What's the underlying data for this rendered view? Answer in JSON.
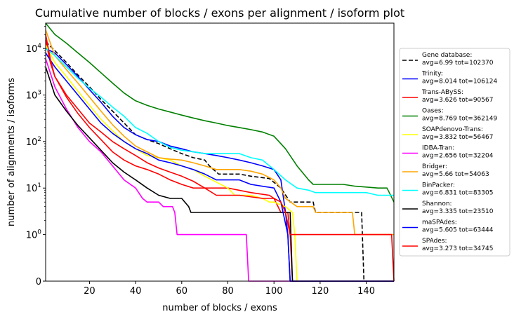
{
  "chart_data": {
    "type": "line",
    "title": "Cumulative number of blocks / exons per alignment / isoform plot",
    "xlabel": "number of blocks / exons",
    "ylabel": "number of alignments / isoforms",
    "xlim": [
      1,
      152
    ],
    "y_scale": "symlog",
    "ylim": [
      0,
      35000
    ],
    "x_ticks": [
      20,
      40,
      60,
      80,
      100,
      120,
      140
    ],
    "y_ticks": [
      {
        "value": 0,
        "label": "0"
      },
      {
        "value": 1,
        "label": "10^0"
      },
      {
        "value": 10,
        "label": "10^1"
      },
      {
        "value": 100,
        "label": "10^2"
      },
      {
        "value": 1000,
        "label": "10^3"
      },
      {
        "value": 10000,
        "label": "10^4"
      }
    ],
    "grid": false,
    "legend_position": "right",
    "series": [
      {
        "name": "Gene database:",
        "stats": "avg=6.99 tot=102370",
        "color": "#000000",
        "dashed": true,
        "points": [
          [
            1,
            14000
          ],
          [
            5,
            9000
          ],
          [
            10,
            5000
          ],
          [
            15,
            2700
          ],
          [
            20,
            1500
          ],
          [
            25,
            800
          ],
          [
            30,
            450
          ],
          [
            35,
            250
          ],
          [
            40,
            140
          ],
          [
            45,
            110
          ],
          [
            50,
            90
          ],
          [
            55,
            70
          ],
          [
            60,
            55
          ],
          [
            65,
            45
          ],
          [
            70,
            40
          ],
          [
            72,
            30
          ],
          [
            76,
            20
          ],
          [
            85,
            20
          ],
          [
            90,
            18
          ],
          [
            98,
            16
          ],
          [
            103,
            10
          ],
          [
            106,
            6
          ],
          [
            107,
            5
          ],
          [
            117,
            5
          ],
          [
            118,
            3
          ],
          [
            136,
            3
          ],
          [
            138,
            3
          ],
          [
            139,
            0
          ],
          [
            152,
            0
          ]
        ]
      },
      {
        "name": "Trinity:",
        "stats": "avg=8.014 tot=106124",
        "color": "#0000ff",
        "points": [
          [
            1,
            10000
          ],
          [
            5,
            8000
          ],
          [
            10,
            4500
          ],
          [
            15,
            2500
          ],
          [
            20,
            1300
          ],
          [
            25,
            700
          ],
          [
            30,
            350
          ],
          [
            35,
            200
          ],
          [
            40,
            140
          ],
          [
            45,
            110
          ],
          [
            50,
            100
          ],
          [
            55,
            80
          ],
          [
            60,
            70
          ],
          [
            65,
            60
          ],
          [
            70,
            55
          ],
          [
            75,
            50
          ],
          [
            80,
            45
          ],
          [
            85,
            40
          ],
          [
            90,
            35
          ],
          [
            95,
            30
          ],
          [
            100,
            25
          ],
          [
            103,
            15
          ],
          [
            105,
            3
          ],
          [
            106,
            1
          ],
          [
            107,
            0
          ],
          [
            152,
            0
          ]
        ]
      },
      {
        "name": "Trans-ABySS:",
        "stats": "avg=3.626 tot=90567",
        "color": "#ff0000",
        "points": [
          [
            1,
            15000
          ],
          [
            3,
            5000
          ],
          [
            5,
            2500
          ],
          [
            10,
            1000
          ],
          [
            15,
            500
          ],
          [
            20,
            250
          ],
          [
            25,
            160
          ],
          [
            30,
            100
          ],
          [
            35,
            70
          ],
          [
            40,
            50
          ],
          [
            45,
            35
          ],
          [
            50,
            27
          ],
          [
            55,
            22
          ],
          [
            60,
            18
          ],
          [
            65,
            14
          ],
          [
            70,
            10
          ],
          [
            80,
            10
          ],
          [
            90,
            8
          ],
          [
            98,
            7
          ],
          [
            100,
            6
          ],
          [
            103,
            3
          ],
          [
            106,
            3
          ],
          [
            107,
            1
          ],
          [
            108,
            0
          ],
          [
            152,
            0
          ]
        ]
      },
      {
        "name": "Oases:",
        "stats": "avg=8.769 tot=362149",
        "color": "#008000",
        "points": [
          [
            1,
            35000
          ],
          [
            5,
            20000
          ],
          [
            10,
            13000
          ],
          [
            15,
            8000
          ],
          [
            20,
            5000
          ],
          [
            25,
            3000
          ],
          [
            30,
            1800
          ],
          [
            35,
            1100
          ],
          [
            40,
            750
          ],
          [
            45,
            600
          ],
          [
            50,
            500
          ],
          [
            55,
            430
          ],
          [
            60,
            370
          ],
          [
            65,
            320
          ],
          [
            70,
            280
          ],
          [
            75,
            250
          ],
          [
            80,
            220
          ],
          [
            85,
            200
          ],
          [
            90,
            180
          ],
          [
            95,
            160
          ],
          [
            100,
            130
          ],
          [
            105,
            70
          ],
          [
            110,
            30
          ],
          [
            115,
            15
          ],
          [
            117,
            12
          ],
          [
            130,
            12
          ],
          [
            135,
            11
          ],
          [
            145,
            10
          ],
          [
            149,
            10
          ],
          [
            150,
            8
          ],
          [
            152,
            5
          ]
        ]
      },
      {
        "name": "SOAPdenovo-Trans:",
        "stats": "avg=3.832 tot=56467",
        "color": "#ffff00",
        "points": [
          [
            1,
            12000
          ],
          [
            5,
            5000
          ],
          [
            10,
            2500
          ],
          [
            15,
            1200
          ],
          [
            20,
            600
          ],
          [
            25,
            300
          ],
          [
            30,
            170
          ],
          [
            35,
            100
          ],
          [
            40,
            70
          ],
          [
            45,
            50
          ],
          [
            50,
            45
          ],
          [
            55,
            40
          ],
          [
            60,
            30
          ],
          [
            65,
            25
          ],
          [
            70,
            18
          ],
          [
            80,
            10
          ],
          [
            83,
            7
          ],
          [
            90,
            7
          ],
          [
            95,
            6
          ],
          [
            98,
            5
          ],
          [
            100,
            5
          ],
          [
            105,
            4
          ],
          [
            108,
            3
          ],
          [
            109,
            1
          ],
          [
            110,
            0
          ],
          [
            152,
            0
          ]
        ]
      },
      {
        "name": "IDBA-Tran:",
        "stats": "avg=2.656 tot=32204",
        "color": "#ff00ff",
        "points": [
          [
            1,
            6000
          ],
          [
            3,
            3000
          ],
          [
            5,
            1500
          ],
          [
            10,
            500
          ],
          [
            15,
            200
          ],
          [
            20,
            100
          ],
          [
            25,
            60
          ],
          [
            30,
            30
          ],
          [
            35,
            15
          ],
          [
            40,
            10
          ],
          [
            43,
            6
          ],
          [
            45,
            5
          ],
          [
            50,
            5
          ],
          [
            52,
            4
          ],
          [
            56,
            4
          ],
          [
            57,
            3
          ],
          [
            58,
            1
          ],
          [
            88,
            1
          ],
          [
            89,
            0
          ],
          [
            152,
            0
          ]
        ]
      },
      {
        "name": "Bridger:",
        "stats": "avg=5.66 tot=54063",
        "color": "#ffa500",
        "points": [
          [
            1,
            25000
          ],
          [
            5,
            7000
          ],
          [
            10,
            3500
          ],
          [
            15,
            1800
          ],
          [
            20,
            900
          ],
          [
            25,
            450
          ],
          [
            30,
            230
          ],
          [
            35,
            130
          ],
          [
            40,
            80
          ],
          [
            45,
            60
          ],
          [
            50,
            45
          ],
          [
            55,
            42
          ],
          [
            60,
            40
          ],
          [
            65,
            35
          ],
          [
            70,
            30
          ],
          [
            75,
            25
          ],
          [
            85,
            25
          ],
          [
            90,
            23
          ],
          [
            95,
            20
          ],
          [
            100,
            15
          ],
          [
            103,
            10
          ],
          [
            105,
            6
          ],
          [
            110,
            4
          ],
          [
            117,
            4
          ],
          [
            118,
            3
          ],
          [
            134,
            3
          ],
          [
            135,
            1
          ],
          [
            152,
            1
          ]
        ]
      },
      {
        "name": "BinPacker:",
        "stats": "avg=6.831 tot=83305",
        "color": "#00ffff",
        "points": [
          [
            1,
            10000
          ],
          [
            5,
            7000
          ],
          [
            10,
            4000
          ],
          [
            15,
            2300
          ],
          [
            20,
            1400
          ],
          [
            25,
            900
          ],
          [
            30,
            550
          ],
          [
            35,
            350
          ],
          [
            40,
            200
          ],
          [
            45,
            150
          ],
          [
            50,
            100
          ],
          [
            55,
            75
          ],
          [
            60,
            65
          ],
          [
            65,
            60
          ],
          [
            70,
            55
          ],
          [
            85,
            55
          ],
          [
            90,
            45
          ],
          [
            95,
            40
          ],
          [
            100,
            25
          ],
          [
            105,
            15
          ],
          [
            110,
            10
          ],
          [
            115,
            9
          ],
          [
            118,
            8
          ],
          [
            140,
            8
          ],
          [
            145,
            7
          ],
          [
            152,
            7
          ]
        ]
      },
      {
        "name": "Shannon:",
        "stats": "avg=3.335 tot=23510",
        "color": "#000000",
        "points": [
          [
            1,
            4000
          ],
          [
            3,
            2000
          ],
          [
            5,
            1000
          ],
          [
            10,
            450
          ],
          [
            15,
            220
          ],
          [
            20,
            120
          ],
          [
            25,
            65
          ],
          [
            30,
            35
          ],
          [
            35,
            22
          ],
          [
            40,
            15
          ],
          [
            45,
            10
          ],
          [
            50,
            7
          ],
          [
            55,
            6
          ],
          [
            60,
            6
          ],
          [
            63,
            4
          ],
          [
            64,
            3
          ],
          [
            70,
            3
          ],
          [
            100,
            3
          ],
          [
            107,
            3
          ],
          [
            108,
            0
          ],
          [
            152,
            0
          ]
        ]
      },
      {
        "name": "maSPAdes:",
        "stats": "avg=5.605 tot=63444",
        "color": "#0000ff",
        "points": [
          [
            1,
            8000
          ],
          [
            5,
            4000
          ],
          [
            10,
            2000
          ],
          [
            15,
            1000
          ],
          [
            20,
            500
          ],
          [
            25,
            250
          ],
          [
            30,
            150
          ],
          [
            35,
            100
          ],
          [
            40,
            70
          ],
          [
            45,
            55
          ],
          [
            50,
            40
          ],
          [
            55,
            35
          ],
          [
            60,
            30
          ],
          [
            65,
            25
          ],
          [
            70,
            20
          ],
          [
            75,
            15
          ],
          [
            85,
            15
          ],
          [
            90,
            12
          ],
          [
            100,
            10
          ],
          [
            103,
            5
          ],
          [
            106,
            1
          ],
          [
            107,
            0
          ],
          [
            152,
            0
          ]
        ]
      },
      {
        "name": "SPAdes:",
        "stats": "avg=3.273 tot=34745",
        "color": "#ff0000",
        "points": [
          [
            1,
            20000
          ],
          [
            3,
            6000
          ],
          [
            5,
            2500
          ],
          [
            10,
            900
          ],
          [
            15,
            400
          ],
          [
            20,
            200
          ],
          [
            25,
            110
          ],
          [
            30,
            60
          ],
          [
            35,
            40
          ],
          [
            40,
            30
          ],
          [
            45,
            25
          ],
          [
            50,
            20
          ],
          [
            55,
            15
          ],
          [
            60,
            12
          ],
          [
            65,
            10
          ],
          [
            70,
            10
          ],
          [
            75,
            7
          ],
          [
            85,
            7
          ],
          [
            95,
            6
          ],
          [
            100,
            6
          ],
          [
            103,
            5
          ],
          [
            105,
            3
          ],
          [
            107,
            1
          ],
          [
            150,
            1
          ],
          [
            151,
            1
          ],
          [
            152,
            0
          ]
        ]
      }
    ]
  }
}
